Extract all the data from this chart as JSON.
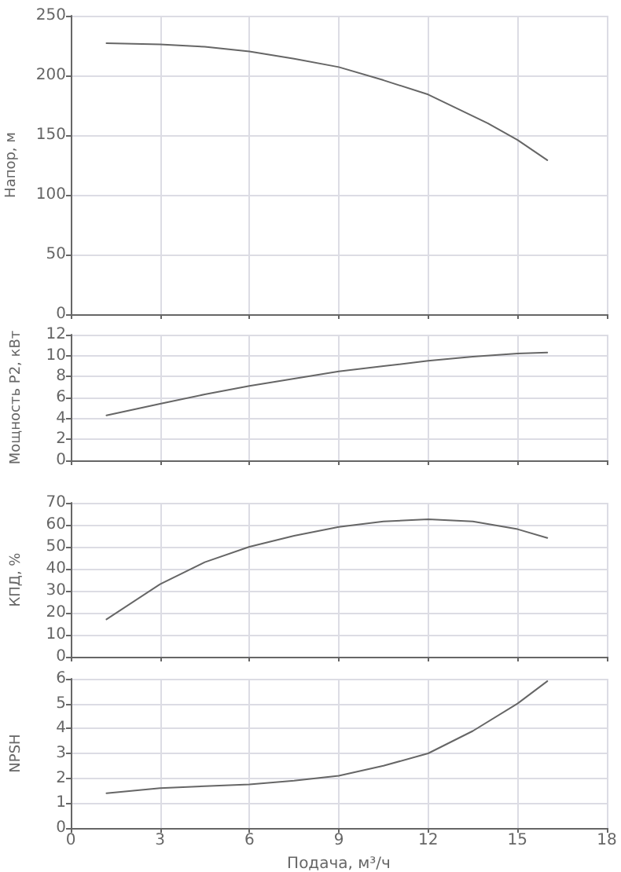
{
  "chart_data": [
    {
      "type": "line",
      "x": [
        1.2,
        3,
        4.5,
        6,
        7.5,
        9,
        10.5,
        12,
        13,
        14,
        15,
        16
      ],
      "series": [
        {
          "color": "#666666",
          "values": [
            227,
            226,
            224,
            220,
            214,
            207,
            196,
            184,
            172,
            160,
            146,
            129
          ]
        }
      ],
      "xlim": [
        0,
        18
      ],
      "xticks": [
        0,
        3,
        6,
        9,
        12,
        15,
        18
      ],
      "ylim": [
        0,
        250
      ],
      "yticks": [
        0,
        50,
        100,
        150,
        200,
        250
      ],
      "ylabel": "Напор, м",
      "grid": true,
      "tick_labels": "y"
    },
    {
      "type": "line",
      "x": [
        1.2,
        3,
        4.5,
        6,
        7.5,
        9,
        10.5,
        12,
        13.5,
        15,
        16
      ],
      "series": [
        {
          "color": "#666666",
          "values": [
            4.3,
            5.4,
            6.3,
            7.1,
            7.8,
            8.5,
            9.0,
            9.5,
            9.9,
            10.2,
            10.3
          ]
        }
      ],
      "xlim": [
        0,
        18
      ],
      "xticks": [
        0,
        3,
        6,
        9,
        12,
        15,
        18
      ],
      "ylim": [
        0,
        12
      ],
      "yticks": [
        0,
        2,
        4,
        6,
        8,
        10,
        12
      ],
      "ylabel": "Мощность P2, кВт",
      "grid": true,
      "tick_labels": "y"
    },
    {
      "type": "line",
      "x": [
        1.2,
        3,
        4.5,
        6,
        7.5,
        9,
        10.5,
        12,
        13.5,
        15,
        16
      ],
      "series": [
        {
          "color": "#666666",
          "values": [
            17,
            33,
            43,
            50,
            55,
            59,
            61.5,
            62.5,
            61.5,
            58,
            54
          ]
        }
      ],
      "xlim": [
        0,
        18
      ],
      "xticks": [
        0,
        3,
        6,
        9,
        12,
        15,
        18
      ],
      "ylim": [
        0,
        70
      ],
      "yticks": [
        0,
        10,
        20,
        30,
        40,
        50,
        60,
        70
      ],
      "ylabel": "КПД, %",
      "grid": true,
      "tick_labels": "y"
    },
    {
      "type": "line",
      "x": [
        1.2,
        3,
        4.5,
        6,
        7.5,
        9,
        10.5,
        12,
        13.5,
        15,
        16
      ],
      "series": [
        {
          "color": "#666666",
          "values": [
            1.4,
            1.6,
            1.68,
            1.75,
            1.9,
            2.1,
            2.5,
            3.0,
            3.9,
            5.0,
            5.9
          ]
        }
      ],
      "xlim": [
        0,
        18
      ],
      "xticks": [
        0,
        3,
        6,
        9,
        12,
        15,
        18
      ],
      "ylim": [
        0,
        6
      ],
      "yticks": [
        0,
        1,
        2,
        3,
        4,
        5,
        6
      ],
      "ylabel": "NPSH",
      "xlabel": "Подача, м³/ч",
      "grid": true
    }
  ]
}
